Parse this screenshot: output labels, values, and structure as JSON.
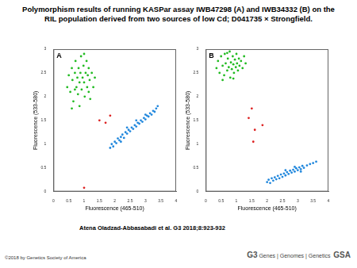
{
  "title": "Polymorphism results of running KASPar assay IWB47298 (A) and IWB34332 (B) on the RIL population derived from two sources of low Cd; D041735 × Strongfield.",
  "citation": "Atena Oladzad-Abbasabadi et al. G3 2018;8:923-932",
  "copyright": "©2018 by Genetics Society of America",
  "logo": {
    "journal": "G3",
    "subtitle": "Genes | Genomes | Genetics",
    "society": "GSA"
  },
  "chart_data": [
    {
      "type": "scatter",
      "title": "A",
      "x_label": "Fluorescence (465-510)",
      "y_label": "Fluorescence (533-580)",
      "xlim": [
        0,
        4
      ],
      "xticks": [
        0,
        0.5,
        1,
        1.5,
        2,
        2.5,
        3,
        3.5,
        4
      ],
      "ylim": [
        0,
        3
      ],
      "yticks": [
        0,
        0.5,
        1,
        1.5,
        2,
        2.5,
        3
      ],
      "grid": false,
      "marker": "circle",
      "series": [
        {
          "color": "#22bb22",
          "x": [
            0.45,
            0.5,
            0.55,
            0.6,
            0.62,
            0.65,
            0.7,
            0.72,
            0.75,
            0.78,
            0.8,
            0.82,
            0.85,
            0.88,
            0.9,
            0.92,
            0.95,
            0.98,
            1.0,
            1.02,
            1.05,
            1.08,
            1.1,
            1.12,
            1.15,
            1.18,
            1.2,
            1.25,
            1.3,
            1.35,
            0.6,
            0.85,
            1.0,
            0.7,
            1.15
          ],
          "values": [
            2.2,
            2.45,
            2.1,
            2.6,
            2.35,
            1.9,
            2.5,
            2.75,
            2.2,
            2.4,
            2.05,
            2.6,
            2.3,
            2.5,
            2.85,
            2.15,
            2.4,
            2.65,
            2.3,
            2.0,
            2.5,
            2.75,
            2.2,
            2.45,
            2.6,
            2.35,
            1.95,
            2.5,
            2.2,
            2.4,
            1.75,
            1.8,
            2.9,
            2.15,
            2.1
          ]
        },
        {
          "color": "#2288dd",
          "x": [
            1.85,
            1.9,
            1.95,
            2.0,
            2.05,
            2.1,
            2.15,
            2.2,
            2.25,
            2.3,
            2.35,
            2.4,
            2.45,
            2.5,
            2.55,
            2.6,
            2.65,
            2.7,
            2.75,
            2.8,
            2.85,
            2.9,
            2.95,
            3.0,
            3.05,
            3.1,
            3.15,
            3.2,
            3.25,
            3.3,
            3.35,
            3.4,
            2.4,
            2.7,
            3.0,
            2.2
          ],
          "values": [
            0.92,
            1.0,
            0.95,
            1.05,
            1.02,
            1.12,
            1.08,
            1.15,
            1.2,
            1.13,
            1.25,
            1.22,
            1.3,
            1.27,
            1.35,
            1.32,
            1.4,
            1.37,
            1.45,
            1.43,
            1.5,
            1.47,
            1.55,
            1.52,
            1.6,
            1.58,
            1.65,
            1.62,
            1.7,
            1.68,
            1.75,
            1.8,
            1.35,
            1.5,
            1.62,
            1.05
          ]
        },
        {
          "color": "#dd2222",
          "x": [
            1.5,
            1.7,
            1.85,
            1.0
          ],
          "values": [
            1.5,
            1.45,
            1.6,
            0.08
          ]
        }
      ]
    },
    {
      "type": "scatter",
      "title": "B",
      "x_label": "Fluorescence (465-510)",
      "y_label": "Fluorescence (533-580)",
      "xlim": [
        0,
        4
      ],
      "xticks": [
        0,
        0.5,
        1,
        1.5,
        2,
        2.5,
        3,
        3.5,
        4
      ],
      "ylim": [
        0,
        3
      ],
      "yticks": [
        0,
        0.5,
        1,
        1.5,
        2,
        2.5,
        3
      ],
      "grid": false,
      "marker": "circle",
      "series": [
        {
          "color": "#22bb22",
          "x": [
            0.35,
            0.4,
            0.45,
            0.5,
            0.55,
            0.6,
            0.62,
            0.65,
            0.7,
            0.72,
            0.75,
            0.78,
            0.8,
            0.82,
            0.85,
            0.88,
            0.9,
            0.92,
            0.95,
            0.98,
            1.0,
            1.02,
            1.05,
            1.08,
            1.1,
            1.15,
            1.2,
            1.25,
            1.3,
            0.55,
            0.7,
            0.9
          ],
          "values": [
            2.6,
            2.75,
            2.5,
            2.85,
            2.65,
            2.45,
            2.9,
            2.7,
            2.55,
            2.8,
            2.62,
            2.95,
            2.4,
            2.72,
            2.58,
            2.85,
            2.68,
            2.5,
            2.78,
            2.62,
            2.9,
            2.7,
            2.55,
            2.8,
            2.65,
            2.75,
            2.6,
            2.85,
            2.7,
            2.35,
            2.92,
            2.38
          ]
        },
        {
          "color": "#2288dd",
          "x": [
            2.0,
            2.05,
            2.1,
            2.15,
            2.2,
            2.25,
            2.3,
            2.35,
            2.4,
            2.45,
            2.5,
            2.55,
            2.6,
            2.65,
            2.7,
            2.75,
            2.8,
            2.85,
            2.9,
            2.95,
            3.0,
            3.05,
            3.1,
            3.15,
            3.2,
            3.3,
            3.4,
            3.5,
            3.6,
            2.6,
            2.9,
            3.1
          ],
          "values": [
            0.2,
            0.25,
            0.18,
            0.28,
            0.23,
            0.3,
            0.26,
            0.33,
            0.28,
            0.36,
            0.31,
            0.38,
            0.34,
            0.41,
            0.37,
            0.44,
            0.4,
            0.46,
            0.42,
            0.49,
            0.45,
            0.51,
            0.47,
            0.54,
            0.5,
            0.55,
            0.58,
            0.6,
            0.63,
            0.45,
            0.52,
            0.42
          ]
        },
        {
          "color": "#dd2222",
          "x": [
            1.4,
            1.6,
            1.55,
            1.85,
            1.5
          ],
          "values": [
            1.55,
            1.3,
            1.05,
            1.4,
            1.75
          ]
        }
      ]
    }
  ]
}
